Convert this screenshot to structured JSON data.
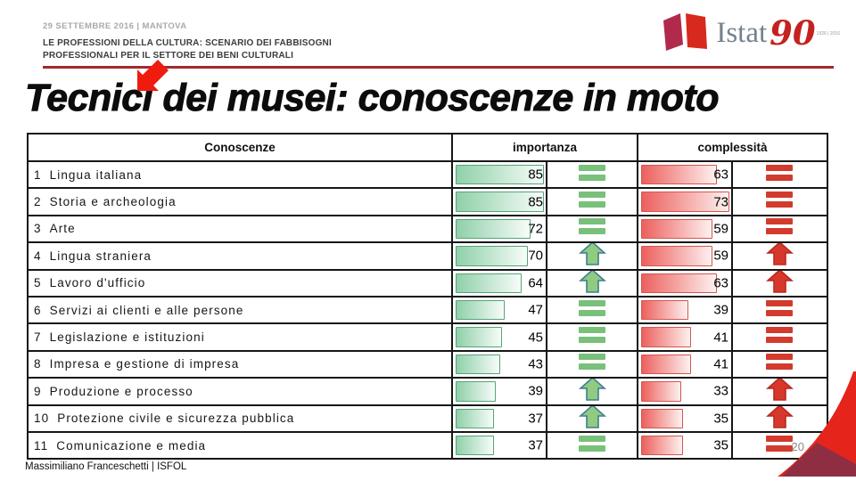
{
  "slide": {
    "date_location": "29 SETTEMBRE 2016 | MANTOVA",
    "subtitle_line1": "LE PROFESSIONI DELLA CULTURA: SCENARIO DEI FABBISOGNI",
    "subtitle_line2": "PROFESSIONALI PER IL SETTORE DEI BENI CULTURALI",
    "title": "Tecnici dei musei: conoscenze in moto",
    "footer": "Massimiliano Franceschetti | ISFOL",
    "page_number": "20"
  },
  "logo": {
    "text": "Istat",
    "anniversary": "90",
    "years": "1926 | 2016"
  },
  "chart_data": {
    "type": "table",
    "title": "Tecnici dei musei: conoscenze in moto",
    "columns": [
      "Conoscenze",
      "importanza",
      "complessità"
    ],
    "series": [
      {
        "name": "importanza",
        "max": 85,
        "style": "green-bar"
      },
      {
        "name": "complessità",
        "max": 73,
        "style": "red-bar"
      }
    ],
    "trend_legend": {
      "up": "arrow-up-icon",
      "equal": "equals-icon"
    },
    "rows": [
      {
        "rank": "1",
        "label": "Lingua italiana",
        "importanza": 85,
        "importanza_trend": "equal",
        "complessita": 63,
        "complessita_trend": "equal"
      },
      {
        "rank": "2",
        "label": "Storia e archeologia",
        "importanza": 85,
        "importanza_trend": "equal",
        "complessita": 73,
        "complessita_trend": "equal"
      },
      {
        "rank": "3",
        "label": "Arte",
        "importanza": 72,
        "importanza_trend": "equal",
        "complessita": 59,
        "complessita_trend": "equal"
      },
      {
        "rank": "4",
        "label": "Lingua straniera",
        "importanza": 70,
        "importanza_trend": "up",
        "complessita": 59,
        "complessita_trend": "up"
      },
      {
        "rank": "5",
        "label": "Lavoro d'ufficio",
        "importanza": 64,
        "importanza_trend": "up",
        "complessita": 63,
        "complessita_trend": "up"
      },
      {
        "rank": "6",
        "label": "Servizi ai clienti e alle persone",
        "importanza": 47,
        "importanza_trend": "equal",
        "complessita": 39,
        "complessita_trend": "equal"
      },
      {
        "rank": "7",
        "label": "Legislazione e istituzioni",
        "importanza": 45,
        "importanza_trend": "equal",
        "complessita": 41,
        "complessita_trend": "equal"
      },
      {
        "rank": "8",
        "label": "Impresa e gestione di impresa",
        "importanza": 43,
        "importanza_trend": "equal",
        "complessita": 41,
        "complessita_trend": "equal"
      },
      {
        "rank": "9",
        "label": "Produzione e processo",
        "importanza": 39,
        "importanza_trend": "up",
        "complessita": 33,
        "complessita_trend": "up"
      },
      {
        "rank": "10",
        "label": "Protezione civile e sicurezza pubblica",
        "importanza": 37,
        "importanza_trend": "up",
        "complessita": 35,
        "complessita_trend": "up"
      },
      {
        "rank": "11",
        "label": "Comunicazione e media",
        "importanza": 37,
        "importanza_trend": "equal",
        "complessita": 35,
        "complessita_trend": "equal"
      }
    ]
  },
  "colors": {
    "accent_rule": "#9e2b2c",
    "title_arrow": "#ee1b0e",
    "imp_bar_start": "#8fd0a9",
    "imp_bar_end": "#f7fcf9",
    "imp_bar_border": "#57a477",
    "imp_equal": "#79c07a",
    "imp_arrow_fill": "#8fcb80",
    "imp_arrow_stroke": "#3f7d92",
    "comp_bar_start": "#ec605d",
    "comp_bar_end": "#fdf1f0",
    "comp_bar_border": "#d4564f",
    "comp_equal": "#d23b2d",
    "comp_arrow_fill": "#d6392c",
    "comp_arrow_stroke": "#b8291f",
    "logo_crimson": "#b12a4b",
    "logo_red": "#d7291d",
    "corner_red": "#e5251b",
    "corner_maroon": "#8f2e43"
  }
}
